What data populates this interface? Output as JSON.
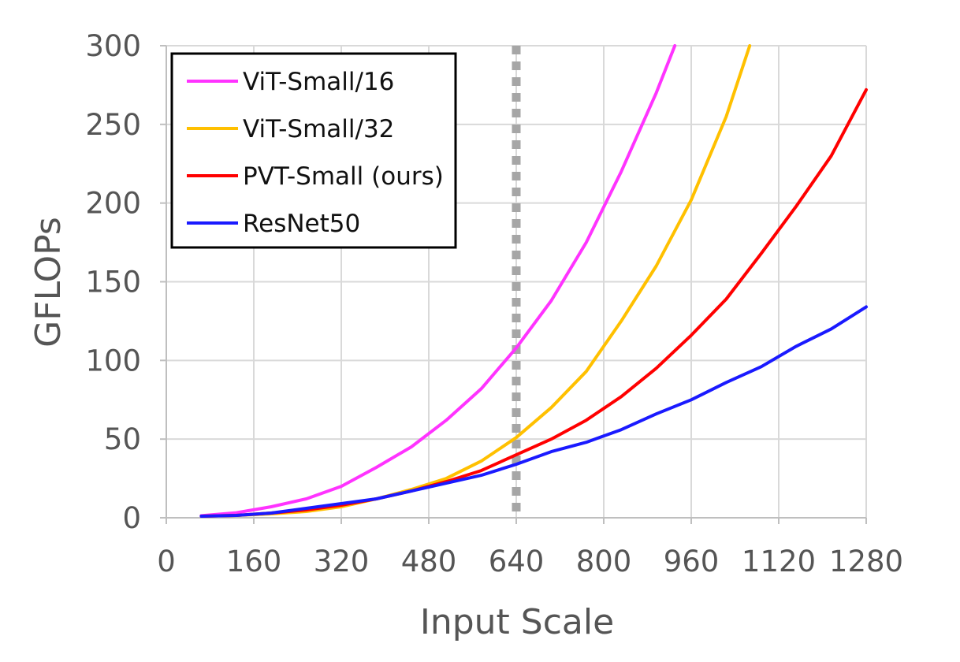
{
  "chart_data": {
    "type": "line",
    "title": "",
    "xlabel": "Input Scale",
    "ylabel": "GFLOPs",
    "xlim": [
      0,
      1280
    ],
    "ylim": [
      0,
      300
    ],
    "x_ticks": [
      "0",
      "160",
      "320",
      "480",
      "640",
      "800",
      "960",
      "1120",
      "1280"
    ],
    "y_ticks": [
      "0",
      "50",
      "100",
      "150",
      "200",
      "250",
      "300"
    ],
    "grid": true,
    "legend_position": "top-left",
    "reference_line": {
      "x": 640,
      "style": "dotted",
      "color": "#a6a6a6"
    },
    "series": [
      {
        "name": "ViT-Small/16",
        "color": "#ff33ff",
        "points": [
          [
            64,
            1.3
          ],
          [
            128,
            3.2
          ],
          [
            192,
            7
          ],
          [
            256,
            12
          ],
          [
            320,
            20
          ],
          [
            384,
            32
          ],
          [
            448,
            45
          ],
          [
            512,
            62
          ],
          [
            576,
            82
          ],
          [
            640,
            108
          ],
          [
            704,
            138
          ],
          [
            768,
            175
          ],
          [
            832,
            220
          ],
          [
            896,
            270
          ],
          [
            930,
            300
          ]
        ]
      },
      {
        "name": "ViT-Small/32",
        "color": "#ffc000",
        "points": [
          [
            64,
            1
          ],
          [
            128,
            1.5
          ],
          [
            192,
            2.5
          ],
          [
            256,
            4
          ],
          [
            320,
            7
          ],
          [
            384,
            12
          ],
          [
            448,
            18
          ],
          [
            512,
            25
          ],
          [
            576,
            36
          ],
          [
            640,
            51
          ],
          [
            704,
            70
          ],
          [
            768,
            93
          ],
          [
            832,
            125
          ],
          [
            896,
            160
          ],
          [
            960,
            202
          ],
          [
            1024,
            255
          ],
          [
            1067,
            300
          ]
        ]
      },
      {
        "name": "PVT-Small (ours)",
        "color": "#ff0000",
        "points": [
          [
            64,
            1
          ],
          [
            128,
            1.5
          ],
          [
            192,
            3
          ],
          [
            256,
            5
          ],
          [
            320,
            8
          ],
          [
            384,
            12
          ],
          [
            448,
            17
          ],
          [
            512,
            23
          ],
          [
            576,
            30
          ],
          [
            640,
            40
          ],
          [
            704,
            50
          ],
          [
            768,
            62
          ],
          [
            832,
            77
          ],
          [
            896,
            95
          ],
          [
            960,
            116
          ],
          [
            1024,
            139
          ],
          [
            1088,
            168
          ],
          [
            1152,
            198
          ],
          [
            1216,
            230
          ],
          [
            1280,
            272
          ]
        ]
      },
      {
        "name": "ResNet50",
        "color": "#1a1aff",
        "points": [
          [
            64,
            1
          ],
          [
            128,
            1.5
          ],
          [
            192,
            3
          ],
          [
            256,
            6
          ],
          [
            320,
            9
          ],
          [
            384,
            12
          ],
          [
            448,
            17
          ],
          [
            512,
            22
          ],
          [
            576,
            27
          ],
          [
            640,
            34
          ],
          [
            704,
            42
          ],
          [
            768,
            48
          ],
          [
            832,
            56
          ],
          [
            896,
            66
          ],
          [
            960,
            75
          ],
          [
            1024,
            86
          ],
          [
            1088,
            96
          ],
          [
            1152,
            109
          ],
          [
            1216,
            120
          ],
          [
            1280,
            134
          ]
        ]
      }
    ]
  }
}
